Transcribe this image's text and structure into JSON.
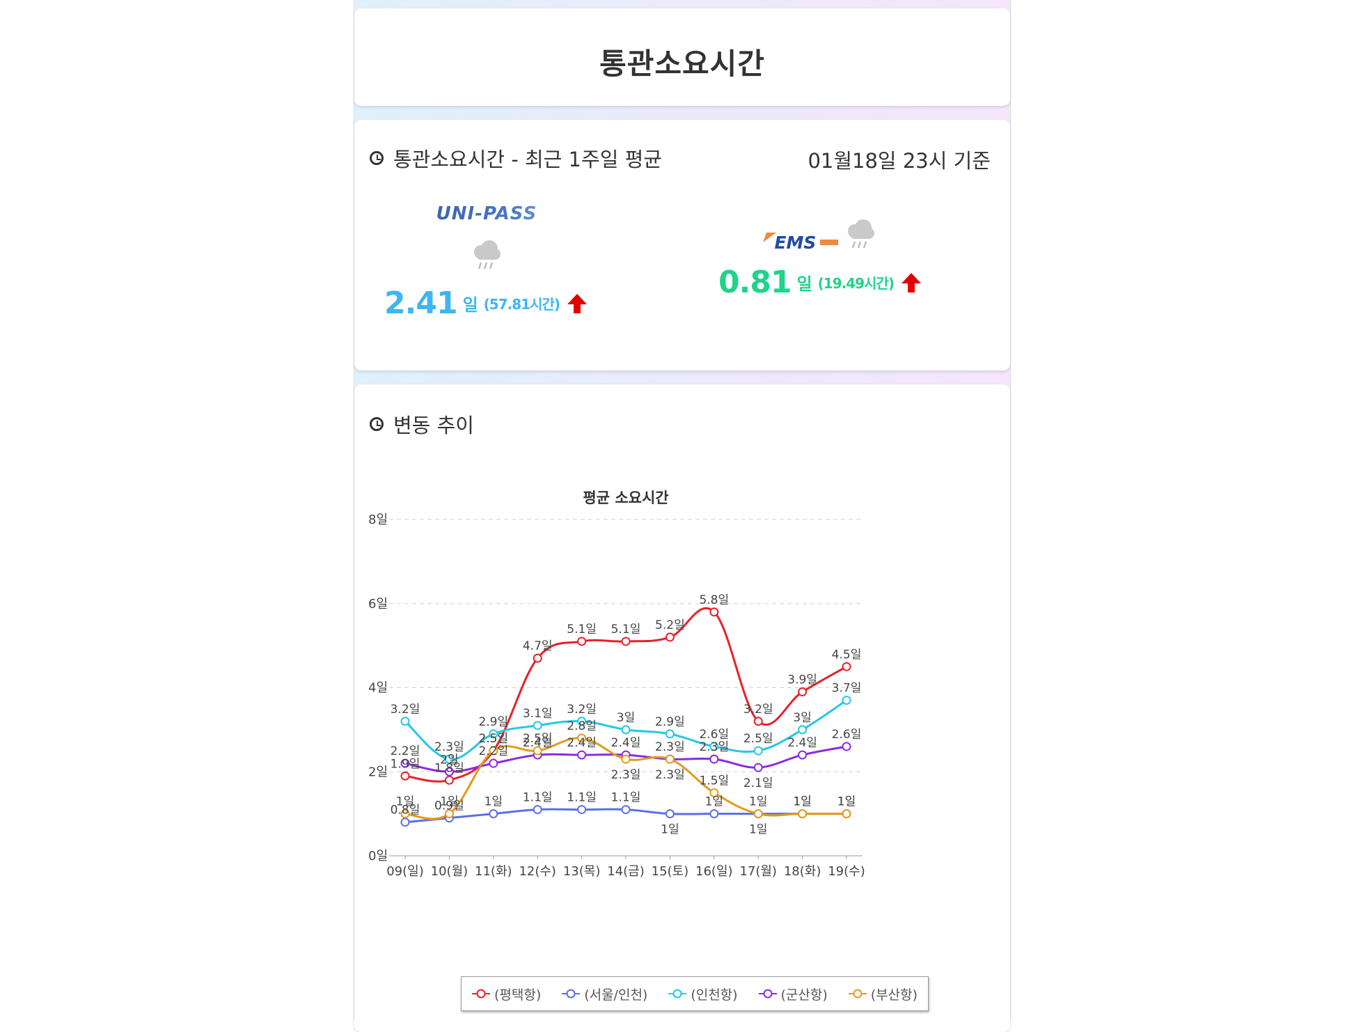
{
  "header": {
    "title": "통관소요시간"
  },
  "summary": {
    "heading": "통관소요시간 - 최근 1주일 평균",
    "basis": "01월18일 23시 기준",
    "providers": [
      {
        "name": "UNI-PASS",
        "weather_icon": "rain-cloud-icon",
        "days": "2.41",
        "unit": "일",
        "hours": "(57.81시간)",
        "trend_icon": "arrow-up-icon",
        "color": "#3db6f2",
        "trend_color": "#e50000"
      },
      {
        "name": "EMS",
        "weather_icon": "rain-cloud-icon",
        "days": "0.81",
        "unit": "일",
        "hours": "(19.49시간)",
        "trend_icon": "arrow-up-icon",
        "color": "#1fd38a",
        "trend_color": "#e50000"
      }
    ]
  },
  "trend": {
    "heading": "변동 추이"
  },
  "chart_data": {
    "type": "line",
    "title": "평균 소요시간",
    "xlabel": "",
    "ylabel": "",
    "ylim": [
      0,
      8
    ],
    "yticks": [
      "0일",
      "2일",
      "4일",
      "6일",
      "8일"
    ],
    "grid": true,
    "legend_position": "bottom",
    "x": [
      "09(일)",
      "10(월)",
      "11(화)",
      "12(수)",
      "13(목)",
      "14(금)",
      "15(토)",
      "16(일)",
      "17(월)",
      "18(화)",
      "19(수)"
    ],
    "series": [
      {
        "name": "(평택항)",
        "color": "#e8202a",
        "values": [
          1.9,
          1.8,
          2.5,
          4.7,
          5.1,
          5.1,
          5.2,
          5.8,
          3.2,
          3.9,
          4.5
        ],
        "labels": [
          "1.9일",
          "1.8일",
          "2.5일",
          "4.7일",
          "5.1일",
          "5.1일",
          "5.2일",
          "5.8일",
          "3.2일",
          "3.9일",
          "4.5일"
        ]
      },
      {
        "name": "(서울/인천)",
        "color": "#5b6fe6",
        "values": [
          0.8,
          0.9,
          1,
          1.1,
          1.1,
          1.1,
          1,
          1,
          1,
          1,
          1
        ],
        "labels": [
          "0.8일",
          "0.9일",
          "1일",
          "1.1일",
          "1.1일",
          "1.1일",
          "1일",
          "1일",
          "1일",
          "1일",
          "1일"
        ]
      },
      {
        "name": "(인천항)",
        "color": "#22c8e6",
        "values": [
          3.2,
          2.3,
          2.9,
          3.1,
          3.2,
          3,
          2.9,
          2.6,
          2.5,
          3,
          3.7
        ],
        "labels": [
          "3.2일",
          "2.3일",
          "2.9일",
          "3.1일",
          "3.2일",
          "3일",
          "2.9일",
          "2.6일",
          "2.5일",
          "3일",
          "3.7일"
        ]
      },
      {
        "name": "(군산항)",
        "color": "#8a2be2",
        "values": [
          2.2,
          2,
          2.2,
          2.4,
          2.4,
          2.4,
          2.3,
          2.3,
          2.1,
          2.4,
          2.6
        ],
        "labels": [
          "2.2일",
          "2일",
          "2.2일",
          "2.4일",
          "2.4일",
          "2.4일",
          "2.3일",
          "2.3일",
          "2.1일",
          "2.4일",
          "2.6일"
        ]
      },
      {
        "name": "(부산항)",
        "color": "#e39a1b",
        "values": [
          1,
          1,
          2.5,
          2.5,
          2.8,
          2.3,
          2.3,
          1.5,
          1,
          1,
          1
        ],
        "labels": [
          "1일",
          "1일",
          "2.5일",
          "2.5일",
          "2.8일",
          "2.3일",
          "2.3일",
          "1.5일",
          "1일",
          "1일",
          "1일"
        ]
      }
    ]
  }
}
